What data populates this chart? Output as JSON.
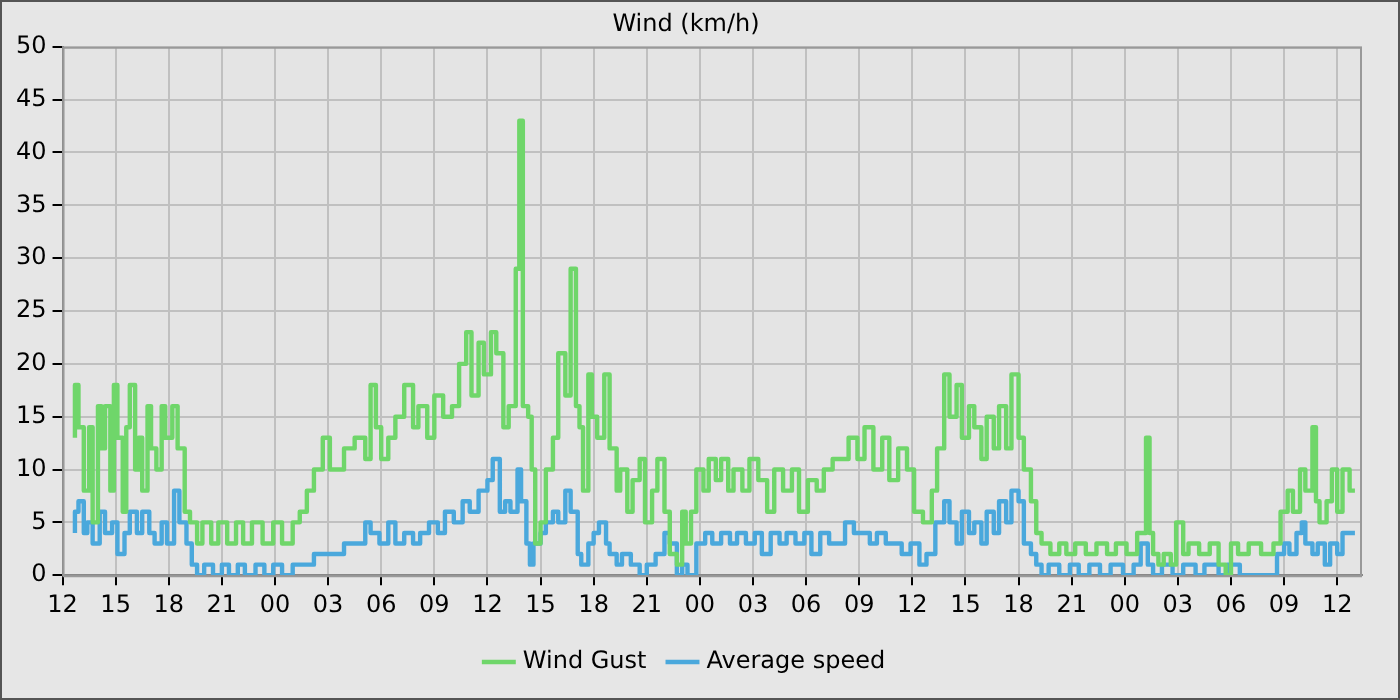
{
  "chart_data": {
    "type": "step",
    "title": "Wind (km/h)",
    "xlim": [
      12,
      85.4
    ],
    "xticks": [
      {
        "value": 12,
        "label": "12"
      },
      {
        "value": 15,
        "label": "15"
      },
      {
        "value": 18,
        "label": "18"
      },
      {
        "value": 21,
        "label": "21"
      },
      {
        "value": 24,
        "label": "00"
      },
      {
        "value": 27,
        "label": "03"
      },
      {
        "value": 30,
        "label": "06"
      },
      {
        "value": 33,
        "label": "09"
      },
      {
        "value": 36,
        "label": "12"
      },
      {
        "value": 39,
        "label": "15"
      },
      {
        "value": 42,
        "label": "18"
      },
      {
        "value": 45,
        "label": "21"
      },
      {
        "value": 48,
        "label": "00"
      },
      {
        "value": 51,
        "label": "03"
      },
      {
        "value": 54,
        "label": "06"
      },
      {
        "value": 57,
        "label": "09"
      },
      {
        "value": 60,
        "label": "12"
      },
      {
        "value": 63,
        "label": "15"
      },
      {
        "value": 66,
        "label": "18"
      },
      {
        "value": 69,
        "label": "21"
      },
      {
        "value": 72,
        "label": "00"
      },
      {
        "value": 75,
        "label": "03"
      },
      {
        "value": 78,
        "label": "06"
      },
      {
        "value": 81,
        "label": "09"
      },
      {
        "value": 84,
        "label": "12"
      }
    ],
    "ylim": [
      0,
      50
    ],
    "yticks": [
      0,
      5,
      10,
      15,
      20,
      25,
      30,
      35,
      40,
      45,
      50
    ],
    "grid": true,
    "legend": "bottom",
    "line_style": "solid",
    "marker": "none",
    "series": [
      {
        "name": "Wind Gust",
        "color": "#6fd66a",
        "x": [
          12.7,
          12.9,
          13.2,
          13.5,
          13.7,
          14.0,
          14.2,
          14.4,
          14.7,
          14.9,
          15.1,
          15.4,
          15.6,
          15.8,
          16.1,
          16.3,
          16.5,
          16.8,
          17.0,
          17.3,
          17.6,
          17.8,
          18.2,
          18.5,
          18.9,
          19.2,
          19.6,
          19.9,
          20.4,
          20.8,
          21.3,
          21.8,
          22.2,
          22.7,
          23.3,
          23.9,
          24.4,
          25.0,
          25.4,
          25.8,
          26.2,
          26.7,
          27.1,
          27.5,
          27.9,
          28.5,
          29.1,
          29.4,
          29.7,
          30.0,
          30.4,
          30.8,
          31.3,
          31.8,
          32.1,
          32.6,
          33.0,
          33.5,
          34.0,
          34.4,
          34.8,
          35.1,
          35.5,
          35.8,
          36.2,
          36.5,
          36.9,
          37.2,
          37.6,
          37.8,
          38.0,
          38.3,
          38.5,
          38.7,
          39.0,
          39.3,
          39.7,
          40.0,
          40.4,
          40.7,
          41.0,
          41.2,
          41.4,
          41.7,
          41.9,
          42.2,
          42.6,
          42.9,
          43.3,
          43.5,
          43.9,
          44.2,
          44.6,
          44.9,
          45.3,
          45.6,
          46.0,
          46.3,
          46.7,
          47.0,
          47.2,
          47.5,
          47.8,
          48.2,
          48.5,
          48.9,
          49.2,
          49.6,
          49.9,
          50.4,
          50.8,
          51.3,
          51.8,
          52.2,
          52.7,
          53.2,
          53.6,
          54.1,
          54.6,
          55.0,
          55.5,
          56.0,
          56.4,
          56.9,
          57.3,
          57.8,
          58.3,
          58.7,
          59.2,
          59.7,
          60.1,
          60.6,
          61.1,
          61.4,
          61.8,
          62.1,
          62.5,
          62.8,
          63.2,
          63.5,
          63.9,
          64.2,
          64.6,
          64.9,
          65.3,
          65.6,
          66.0,
          66.3,
          66.7,
          67.0,
          67.3,
          67.8,
          68.3,
          68.7,
          69.2,
          69.8,
          70.4,
          71.0,
          71.5,
          72.1,
          72.7,
          73.2,
          73.4,
          73.6,
          73.9,
          74.2,
          74.6,
          74.9,
          75.3,
          75.6,
          76.2,
          76.8,
          77.3,
          77.7,
          78.0,
          78.4,
          79.0,
          79.7,
          80.4,
          80.8,
          81.2,
          81.5,
          81.9,
          82.2,
          82.6,
          82.8,
          83.0,
          83.4,
          83.7,
          84.0,
          84.3,
          84.7,
          85.0
        ],
        "values": [
          13,
          18,
          14,
          8,
          14,
          5,
          16,
          12,
          16,
          8,
          18,
          13,
          6,
          14,
          18,
          10,
          13,
          8,
          16,
          12,
          10,
          16,
          13,
          16,
          12,
          6,
          5,
          3,
          5,
          3,
          5,
          3,
          5,
          3,
          5,
          3,
          5,
          3,
          5,
          6,
          8,
          10,
          13,
          10,
          10,
          12,
          13,
          11,
          18,
          14,
          11,
          13,
          15,
          18,
          14,
          16,
          13,
          17,
          15,
          16,
          20,
          23,
          17,
          22,
          19,
          23,
          21,
          14,
          16,
          29,
          43,
          16,
          15,
          10,
          3,
          5,
          10,
          13,
          21,
          17,
          29,
          16,
          14,
          8,
          19,
          15,
          13,
          19,
          12,
          8,
          10,
          6,
          9,
          11,
          5,
          8,
          11,
          6,
          2,
          1,
          6,
          3,
          6,
          10,
          8,
          11,
          9,
          11,
          8,
          10,
          8,
          11,
          9,
          6,
          10,
          8,
          10,
          6,
          9,
          8,
          10,
          11,
          11,
          13,
          11,
          14,
          10,
          13,
          9,
          12,
          10,
          6,
          5,
          8,
          12,
          19,
          15,
          18,
          13,
          16,
          14,
          11,
          15,
          12,
          16,
          12,
          19,
          13,
          10,
          7,
          4,
          3,
          2,
          3,
          2,
          3,
          2,
          3,
          2,
          3,
          2,
          4,
          13,
          4,
          2,
          1,
          2,
          1,
          5,
          2,
          3,
          2,
          3,
          1,
          0,
          3,
          2,
          3,
          2,
          3,
          6,
          8,
          6,
          10,
          8,
          14,
          7,
          5,
          7,
          10,
          6,
          10,
          8
        ]
      },
      {
        "name": "Average speed",
        "color": "#4aa8dc",
        "x": [
          12.7,
          12.9,
          13.2,
          13.4,
          13.7,
          14.1,
          14.4,
          14.8,
          15.1,
          15.5,
          15.8,
          16.2,
          16.5,
          16.9,
          17.2,
          17.6,
          17.9,
          18.3,
          18.6,
          19.0,
          19.3,
          19.6,
          20.0,
          20.5,
          21.0,
          21.4,
          21.9,
          22.3,
          22.9,
          23.4,
          23.9,
          24.4,
          25.0,
          25.6,
          26.2,
          26.8,
          27.9,
          29.1,
          29.4,
          29.9,
          30.4,
          30.8,
          31.3,
          31.8,
          32.2,
          32.7,
          33.2,
          33.6,
          34.1,
          34.6,
          35.0,
          35.5,
          36.0,
          36.3,
          36.7,
          37.0,
          37.3,
          37.7,
          37.9,
          38.2,
          38.4,
          38.6,
          39.0,
          39.3,
          39.7,
          40.0,
          40.4,
          40.7,
          41.1,
          41.3,
          41.7,
          42.0,
          42.3,
          42.7,
          42.9,
          43.3,
          43.6,
          44.1,
          44.6,
          45.0,
          45.5,
          46.0,
          46.3,
          46.7,
          47.0,
          47.3,
          47.8,
          48.3,
          48.7,
          49.2,
          49.7,
          50.1,
          50.6,
          51.1,
          51.5,
          52.0,
          52.5,
          52.9,
          53.4,
          53.9,
          54.3,
          54.8,
          55.3,
          55.7,
          56.2,
          56.7,
          57.1,
          57.6,
          58.0,
          58.5,
          59.0,
          59.4,
          59.9,
          60.4,
          60.8,
          61.3,
          61.8,
          62.1,
          62.5,
          62.8,
          63.2,
          63.5,
          63.9,
          64.2,
          64.6,
          64.9,
          65.3,
          65.6,
          66.0,
          66.3,
          66.7,
          67.0,
          67.3,
          67.7,
          68.3,
          68.9,
          69.4,
          70.0,
          70.6,
          71.2,
          71.9,
          72.5,
          72.9,
          73.3,
          73.6,
          74.1,
          74.7,
          75.3,
          76.0,
          76.5,
          77.3,
          77.8,
          78.5,
          79.1,
          79.9,
          80.6,
          81.0,
          81.3,
          81.7,
          82.0,
          82.2,
          82.6,
          82.9,
          83.3,
          83.6,
          84.0,
          84.3,
          84.7,
          85.0
        ],
        "values": [
          4,
          6,
          7,
          4,
          5,
          3,
          6,
          4,
          5,
          2,
          4,
          6,
          4,
          6,
          4,
          3,
          5,
          3,
          8,
          5,
          3,
          1,
          0,
          1,
          0,
          1,
          0,
          1,
          0,
          1,
          0,
          1,
          0,
          1,
          1,
          2,
          2,
          3,
          5,
          4,
          3,
          5,
          3,
          4,
          3,
          4,
          5,
          4,
          6,
          5,
          7,
          6,
          8,
          9,
          11,
          6,
          7,
          6,
          10,
          7,
          3,
          1,
          3,
          4,
          5,
          6,
          5,
          8,
          6,
          2,
          1,
          3,
          4,
          5,
          3,
          2,
          1,
          2,
          1,
          0,
          1,
          2,
          4,
          3,
          0,
          1,
          0,
          3,
          4,
          3,
          4,
          3,
          4,
          3,
          4,
          2,
          4,
          3,
          4,
          3,
          4,
          2,
          4,
          3,
          3,
          5,
          4,
          4,
          3,
          4,
          3,
          3,
          2,
          3,
          1,
          2,
          5,
          7,
          5,
          3,
          6,
          4,
          5,
          3,
          6,
          4,
          7,
          5,
          8,
          7,
          3,
          2,
          1,
          0,
          1,
          0,
          1,
          0,
          1,
          0,
          1,
          0,
          1,
          3,
          1,
          0,
          1,
          0,
          1,
          0,
          1,
          0,
          1,
          0,
          0,
          0,
          2,
          3,
          2,
          4,
          5,
          3,
          2,
          3,
          1,
          3,
          2,
          4,
          4
        ]
      }
    ]
  }
}
